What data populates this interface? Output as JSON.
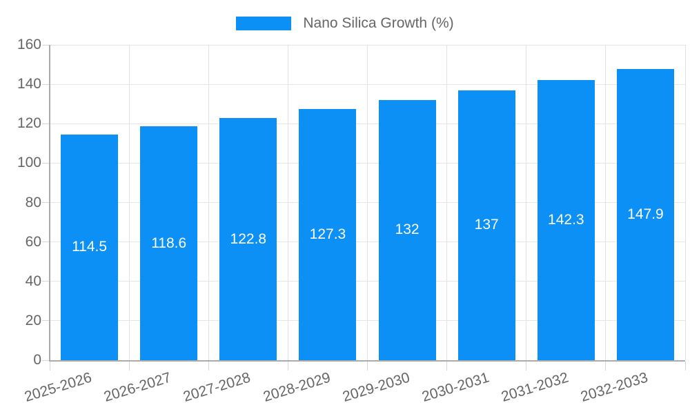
{
  "chart_data": {
    "type": "bar",
    "title": "Nano Silica Growth (%)",
    "legend": {
      "label": "Nano Silica Growth (%)",
      "position": "top"
    },
    "categories": [
      "2025-2026",
      "2026-2027",
      "2027-2028",
      "2028-2029",
      "2029-2030",
      "2030-2031",
      "2031-2032",
      "2032-2033"
    ],
    "series": [
      {
        "name": "Nano Silica Growth (%)",
        "values": [
          114.5,
          118.6,
          122.8,
          127.3,
          132,
          137,
          142.3,
          147.9
        ],
        "data_labels": [
          "114.5",
          "118.6",
          "122.8",
          "127.3",
          "132",
          "137",
          "142.3",
          "147.9"
        ]
      }
    ],
    "xlabel": "",
    "ylabel": "",
    "ylim": [
      0,
      160
    ],
    "yticks": [
      0,
      20,
      40,
      60,
      80,
      100,
      120,
      140,
      160
    ],
    "ytick_labels": [
      "0",
      "20",
      "40",
      "60",
      "80",
      "100",
      "120",
      "140",
      "160"
    ],
    "grid": true,
    "colors": {
      "bar": "#0d90f6",
      "bar_label_text": "#ffffff",
      "tick_text": "#666666",
      "legend_text": "#666666",
      "gridline": "#e5e5e5",
      "axis_line": "#ababab",
      "background": "#ffffff"
    }
  }
}
